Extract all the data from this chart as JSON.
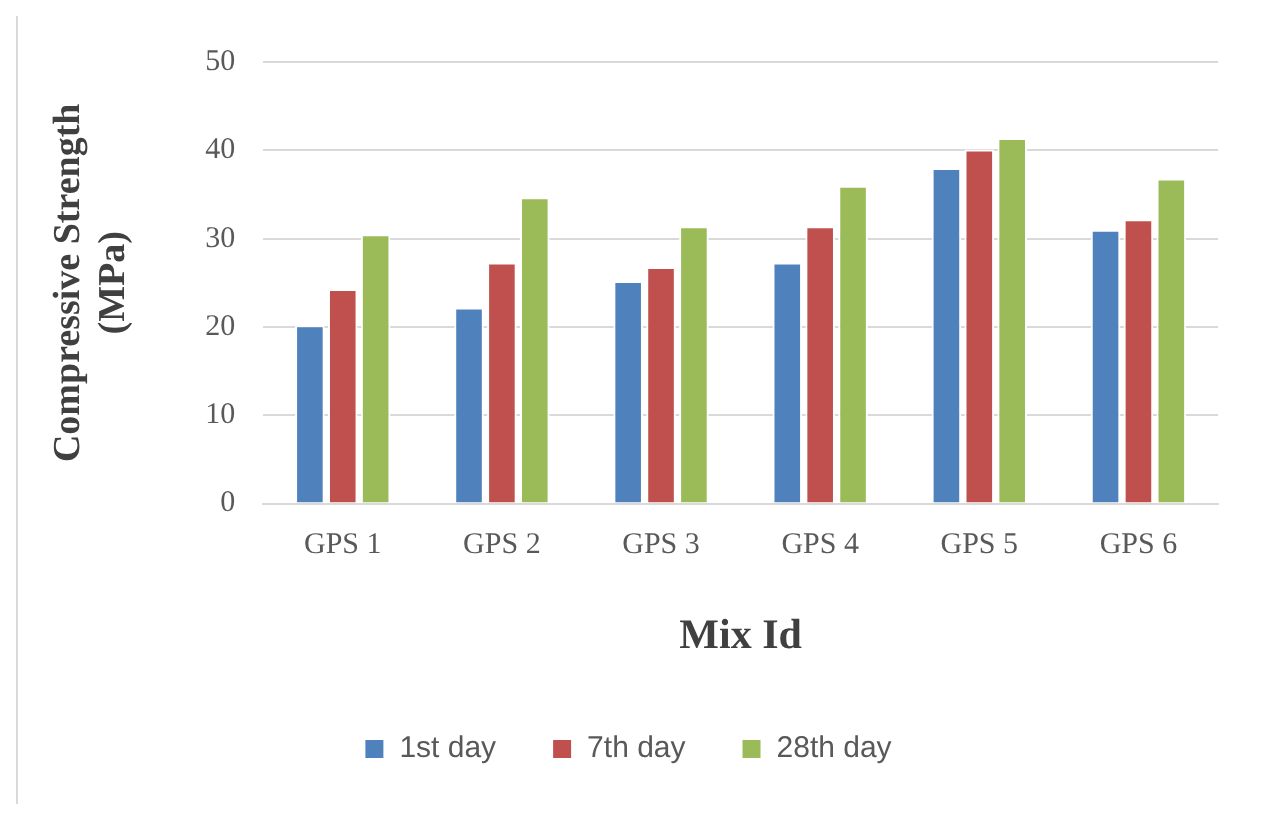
{
  "chart_data": {
    "type": "bar",
    "xlabel": "Mix Id",
    "ylabel": "Compressive Strength (MPa)",
    "categories": [
      "GPS 1",
      "GPS 2",
      "GPS 3",
      "GPS 4",
      "GPS 5",
      "GPS 6"
    ],
    "series": [
      {
        "name": "1st day",
        "color": "#4f81bd",
        "values": [
          20.2,
          22.2,
          25.2,
          27.3,
          38.0,
          31.0
        ]
      },
      {
        "name": "7th day",
        "color": "#c0504d",
        "values": [
          24.3,
          27.3,
          26.8,
          31.4,
          40.1,
          32.2
        ]
      },
      {
        "name": "28th day",
        "color": "#9bbb59",
        "values": [
          30.5,
          34.7,
          31.4,
          36.0,
          41.4,
          36.8
        ]
      }
    ],
    "ylim": [
      0,
      50
    ],
    "yticks": [
      0,
      10,
      20,
      30,
      40,
      50
    ],
    "grid": "y",
    "legend": "bottom"
  }
}
